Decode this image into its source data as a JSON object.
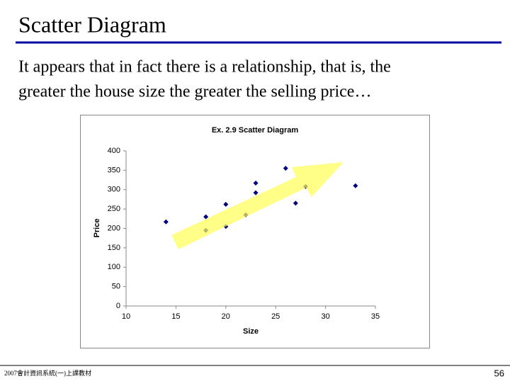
{
  "slide": {
    "title": "Scatter Diagram",
    "body": [
      "It appears that in fact there is a relationship, that is, the",
      "greater the house size the greater the selling price…"
    ],
    "footer": "2007會計資訊系統(一)上課教材",
    "page_number": "56"
  },
  "chart_data": {
    "type": "scatter",
    "title": "Ex. 2.9 Scatter Diagram",
    "x_label": "Size",
    "y_label": "Price",
    "x": [
      14,
      18,
      18,
      20,
      20,
      22,
      23,
      23,
      26,
      27,
      28,
      33
    ],
    "values": [
      217,
      230,
      195,
      262,
      205,
      235,
      317,
      292,
      355,
      265,
      308,
      310
    ],
    "color": "#000080",
    "xlim": [
      10,
      35
    ],
    "xticks": [
      10,
      15,
      20,
      25,
      30,
      35
    ],
    "ylim": [
      0,
      400
    ],
    "yticks": [
      0,
      50,
      100,
      150,
      200,
      250,
      300,
      350,
      400
    ],
    "grid": false
  }
}
